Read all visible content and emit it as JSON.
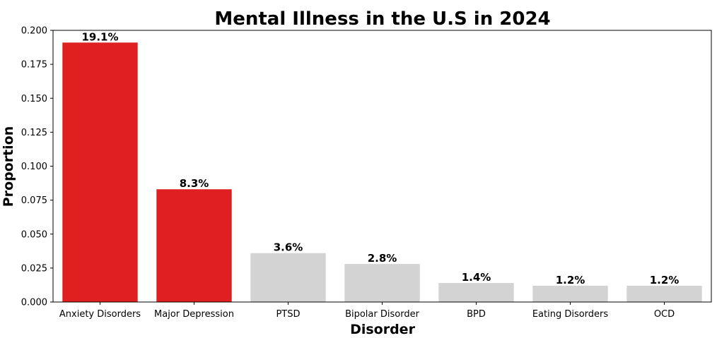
{
  "chart_data": {
    "type": "bar",
    "title": "Mental Illness in the U.S in 2024",
    "xlabel": "Disorder",
    "ylabel": "Proportion",
    "categories": [
      "Anxiety Disorders",
      "Major Depression",
      "PTSD",
      "Bipolar Disorder",
      "BPD",
      "Eating Disorders",
      "OCD"
    ],
    "values": [
      0.191,
      0.083,
      0.036,
      0.028,
      0.014,
      0.012,
      0.012
    ],
    "data_labels": [
      "19.1%",
      "8.3%",
      "3.6%",
      "2.8%",
      "1.4%",
      "1.2%",
      "1.2%"
    ],
    "colors": [
      "#e02020",
      "#e02020",
      "#d3d3d3",
      "#d3d3d3",
      "#d3d3d3",
      "#d3d3d3",
      "#d3d3d3"
    ],
    "ylim": [
      0,
      0.2
    ],
    "yticks": [
      0,
      0.025,
      0.05,
      0.075,
      0.1,
      0.125,
      0.15,
      0.175,
      0.2
    ],
    "ytick_labels": [
      "0.000",
      "0.025",
      "0.050",
      "0.075",
      "0.100",
      "0.125",
      "0.150",
      "0.175",
      "0.200"
    ],
    "grid": false,
    "legend": "none"
  }
}
